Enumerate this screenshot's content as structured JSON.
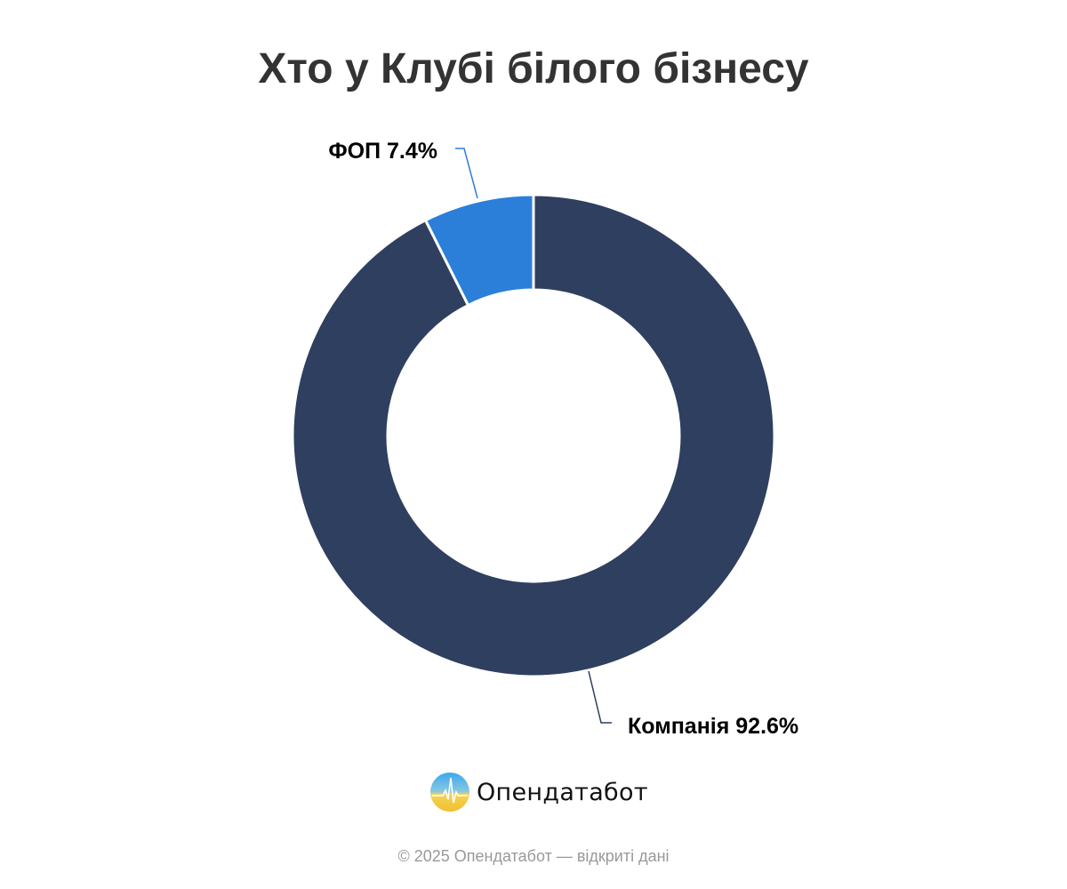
{
  "chart_data": {
    "type": "pie",
    "donut": true,
    "title": "Хто у Клубі білого бізнесу",
    "slices": [
      {
        "label": "ФОП",
        "value": 7.4,
        "display": "ФОП 7.4%",
        "color": "#2b7fd9"
      },
      {
        "label": "Компанія",
        "value": 92.6,
        "display": "Компанія 92.6%",
        "color": "#2f3f5f"
      }
    ],
    "legend": "none"
  },
  "logo": {
    "text": "Опендатабот"
  },
  "footer": "© 2025 Опендатабот — відкриті дані"
}
